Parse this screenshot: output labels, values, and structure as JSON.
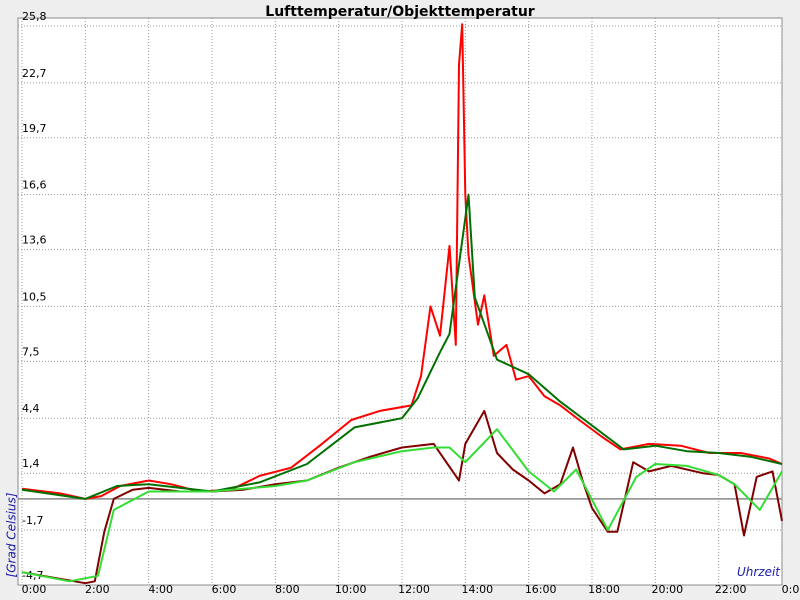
{
  "chart_data": {
    "type": "line",
    "title": "Lufttemperatur/Objekttemperatur",
    "y_label": "[Grad Celsius]",
    "x_label": "Uhrzeit",
    "xlim": [
      0,
      24
    ],
    "xticks": [
      {
        "value": 0,
        "label": "0:00"
      },
      {
        "value": 2,
        "label": "2:00"
      },
      {
        "value": 4,
        "label": "4:00"
      },
      {
        "value": 6,
        "label": "6:00"
      },
      {
        "value": 8,
        "label": "8:00"
      },
      {
        "value": 10,
        "label": "10:00"
      },
      {
        "value": 12,
        "label": "12:00"
      },
      {
        "value": 14,
        "label": "14:00"
      },
      {
        "value": 16,
        "label": "16:00"
      },
      {
        "value": 18,
        "label": "18:00"
      },
      {
        "value": 20,
        "label": "20:00"
      },
      {
        "value": 22,
        "label": "22:00"
      },
      {
        "value": 24,
        "label": "0:00"
      }
    ],
    "ylim": [
      -4.7,
      25.8
    ],
    "yticks": [
      {
        "value": -4.7,
        "label": "-4,7"
      },
      {
        "value": -1.7,
        "label": "-1,7"
      },
      {
        "value": 1.4,
        "label": "1,4"
      },
      {
        "value": 4.4,
        "label": "4,4"
      },
      {
        "value": 7.5,
        "label": "7,5"
      },
      {
        "value": 10.5,
        "label": "10,5"
      },
      {
        "value": 13.6,
        "label": "13,6"
      },
      {
        "value": 16.6,
        "label": "16,6"
      },
      {
        "value": 19.7,
        "label": "19,7"
      },
      {
        "value": 22.7,
        "label": "22,7"
      },
      {
        "value": 25.8,
        "label": "25,8"
      }
    ],
    "grid": true,
    "series": [
      {
        "color": "#ff0000",
        "x": [
          0,
          1.2,
          2.0,
          2.5,
          3.1,
          4.0,
          4.7,
          5.6,
          6.6,
          7.5,
          8.5,
          9.4,
          10.4,
          11.3,
          12.3,
          12.6,
          12.9,
          13.2,
          13.5,
          13.7,
          13.8,
          13.9,
          14.0,
          14.1,
          14.4,
          14.6,
          14.9,
          15.3,
          15.6,
          16.0,
          16.5,
          17.0,
          17.6,
          18.3,
          18.9,
          19.8,
          20.8,
          21.7,
          22.7,
          23.6,
          24
        ],
        "values": [
          0.55,
          0.3,
          0,
          0.15,
          0.7,
          1.0,
          0.8,
          0.4,
          0.5,
          1.25,
          1.7,
          2.9,
          4.3,
          4.8,
          5.1,
          6.7,
          10.5,
          8.9,
          13.8,
          8.4,
          23.7,
          25.9,
          16.6,
          13.3,
          9.5,
          11.1,
          7.8,
          8.4,
          6.5,
          6.7,
          5.6,
          5.1,
          4.3,
          3.4,
          2.7,
          3.0,
          2.9,
          2.5,
          2.5,
          2.2,
          1.9
        ]
      },
      {
        "color": "#007000",
        "x": [
          0,
          2.0,
          3,
          4,
          6,
          7.5,
          9,
          10.5,
          12,
          12.5,
          13.2,
          13.5,
          14.1,
          14.3,
          15,
          16,
          17,
          18,
          19,
          20,
          21,
          22,
          23,
          24
        ],
        "values": [
          0.5,
          0,
          0.7,
          0.8,
          0.4,
          0.9,
          1.9,
          3.9,
          4.4,
          5.5,
          8,
          9,
          16.6,
          11,
          7.6,
          6.8,
          5.3,
          4,
          2.7,
          2.9,
          2.6,
          2.5,
          2.3,
          1.9
        ]
      },
      {
        "color": "#800000",
        "x": [
          0,
          1,
          2,
          2.3,
          2.6,
          2.9,
          3.5,
          4,
          5,
          6,
          7,
          8,
          9,
          10,
          11,
          12,
          13,
          13.4,
          13.8,
          14,
          14.6,
          15,
          15.5,
          16,
          16.5,
          17,
          17.4,
          17.7,
          18,
          18.5,
          18.8,
          19.3,
          19.8,
          20.5,
          21.5,
          22,
          22.5,
          22.8,
          23.2,
          23.7,
          24
        ],
        "values": [
          -4.0,
          -4.3,
          -4.6,
          -4.5,
          -1.8,
          0,
          0.5,
          0.6,
          0.4,
          0.4,
          0.5,
          0.8,
          1.0,
          1.7,
          2.3,
          2.8,
          3.0,
          2.0,
          1.0,
          3,
          4.8,
          2.5,
          1.6,
          1.0,
          0.3,
          0.8,
          2.8,
          1.0,
          -0.5,
          -1.8,
          -1.8,
          2.0,
          1.5,
          1.8,
          1.4,
          1.3,
          0.8,
          -2.0,
          1.2,
          1.5,
          -1.2
        ]
      },
      {
        "color": "#33dd33",
        "x": [
          0,
          1.5,
          2.4,
          2.9,
          4,
          6,
          8,
          9,
          10.5,
          12,
          13,
          13.5,
          14,
          15,
          16,
          16.8,
          17.5,
          18.5,
          19.4,
          20,
          21,
          22,
          22.5,
          23.3,
          24
        ],
        "values": [
          -4.0,
          -4.5,
          -4.2,
          -0.6,
          0.4,
          0.4,
          0.7,
          1.0,
          2.0,
          2.6,
          2.8,
          2.8,
          2.0,
          3.8,
          1.5,
          0.4,
          1.6,
          -1.7,
          1.2,
          1.9,
          1.8,
          1.3,
          0.8,
          -0.6,
          1.5
        ]
      }
    ]
  }
}
